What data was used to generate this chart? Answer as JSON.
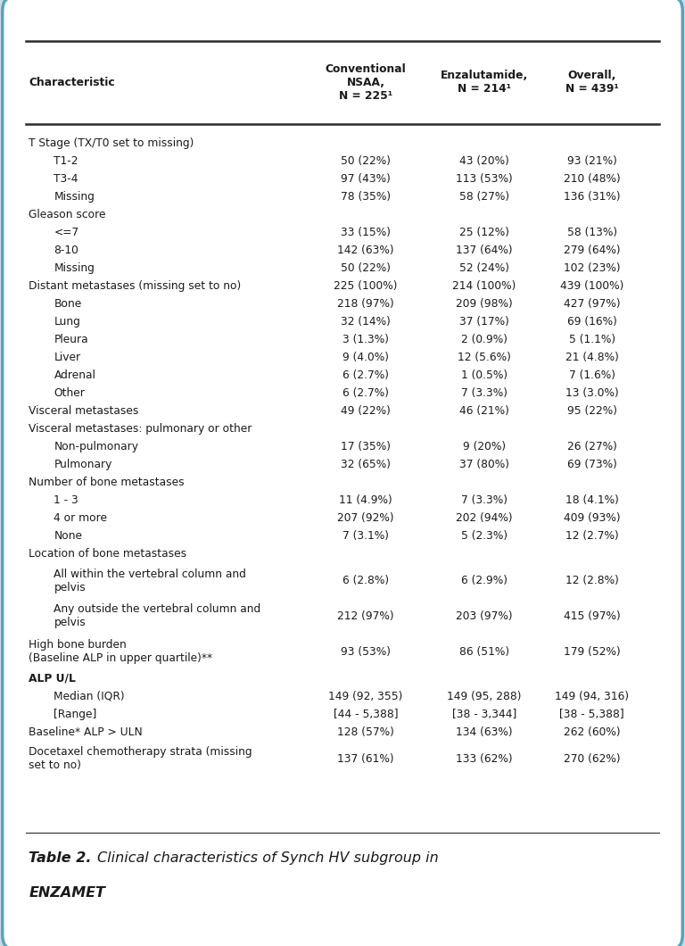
{
  "title_bold": "Table 2.",
  "title_italic": " Clinical characteristics of Synch HV subgroup in\nENZAMET",
  "col_headers": [
    "Characteristic",
    "Conventional\nNSAA,\nN = 225¹",
    "Enzalutamide,\nN = 214¹",
    "Overall,\nN = 439¹"
  ],
  "rows": [
    {
      "label": "T Stage (TX/T0 set to missing)",
      "indent": 0,
      "bold": false,
      "c1": "",
      "c2": "",
      "c3": ""
    },
    {
      "label": "T1-2",
      "indent": 1,
      "bold": false,
      "c1": "50 (22%)",
      "c2": "43 (20%)",
      "c3": "93 (21%)"
    },
    {
      "label": "T3-4",
      "indent": 1,
      "bold": false,
      "c1": "97 (43%)",
      "c2": "113 (53%)",
      "c3": "210 (48%)"
    },
    {
      "label": "Missing",
      "indent": 1,
      "bold": false,
      "c1": "78 (35%)",
      "c2": "58 (27%)",
      "c3": "136 (31%)"
    },
    {
      "label": "Gleason score",
      "indent": 0,
      "bold": false,
      "c1": "",
      "c2": "",
      "c3": ""
    },
    {
      "label": "<=7",
      "indent": 1,
      "bold": false,
      "c1": "33 (15%)",
      "c2": "25 (12%)",
      "c3": "58 (13%)"
    },
    {
      "label": "8-10",
      "indent": 1,
      "bold": false,
      "c1": "142 (63%)",
      "c2": "137 (64%)",
      "c3": "279 (64%)"
    },
    {
      "label": "Missing",
      "indent": 1,
      "bold": false,
      "c1": "50 (22%)",
      "c2": "52 (24%)",
      "c3": "102 (23%)"
    },
    {
      "label": "Distant metastases (missing set to no)",
      "indent": 0,
      "bold": false,
      "c1": "225 (100%)",
      "c2": "214 (100%)",
      "c3": "439 (100%)"
    },
    {
      "label": "Bone",
      "indent": 1,
      "bold": false,
      "c1": "218 (97%)",
      "c2": "209 (98%)",
      "c3": "427 (97%)"
    },
    {
      "label": "Lung",
      "indent": 1,
      "bold": false,
      "c1": "32 (14%)",
      "c2": "37 (17%)",
      "c3": "69 (16%)"
    },
    {
      "label": "Pleura",
      "indent": 1,
      "bold": false,
      "c1": "3 (1.3%)",
      "c2": "2 (0.9%)",
      "c3": "5 (1.1%)"
    },
    {
      "label": "Liver",
      "indent": 1,
      "bold": false,
      "c1": "9 (4.0%)",
      "c2": "12 (5.6%)",
      "c3": "21 (4.8%)"
    },
    {
      "label": "Adrenal",
      "indent": 1,
      "bold": false,
      "c1": "6 (2.7%)",
      "c2": "1 (0.5%)",
      "c3": "7 (1.6%)"
    },
    {
      "label": "Other",
      "indent": 1,
      "bold": false,
      "c1": "6 (2.7%)",
      "c2": "7 (3.3%)",
      "c3": "13 (3.0%)"
    },
    {
      "label": "Visceral metastases",
      "indent": 0,
      "bold": false,
      "c1": "49 (22%)",
      "c2": "46 (21%)",
      "c3": "95 (22%)"
    },
    {
      "label": "Visceral metastases: pulmonary or other",
      "indent": 0,
      "bold": false,
      "c1": "",
      "c2": "",
      "c3": ""
    },
    {
      "label": "Non-pulmonary",
      "indent": 1,
      "bold": false,
      "c1": "17 (35%)",
      "c2": "9 (20%)",
      "c3": "26 (27%)"
    },
    {
      "label": "Pulmonary",
      "indent": 1,
      "bold": false,
      "c1": "32 (65%)",
      "c2": "37 (80%)",
      "c3": "69 (73%)"
    },
    {
      "label": "Number of bone metastases",
      "indent": 0,
      "bold": false,
      "c1": "",
      "c2": "",
      "c3": ""
    },
    {
      "label": "1 - 3",
      "indent": 1,
      "bold": false,
      "c1": "11 (4.9%)",
      "c2": "7 (3.3%)",
      "c3": "18 (4.1%)"
    },
    {
      "label": "4 or more",
      "indent": 1,
      "bold": false,
      "c1": "207 (92%)",
      "c2": "202 (94%)",
      "c3": "409 (93%)"
    },
    {
      "label": "None",
      "indent": 1,
      "bold": false,
      "c1": "7 (3.1%)",
      "c2": "5 (2.3%)",
      "c3": "12 (2.7%)"
    },
    {
      "label": "Location of bone metastases",
      "indent": 0,
      "bold": false,
      "c1": "",
      "c2": "",
      "c3": ""
    },
    {
      "label": "All within the vertebral column and\npelvis",
      "indent": 1,
      "bold": false,
      "c1": "6 (2.8%)",
      "c2": "6 (2.9%)",
      "c3": "12 (2.8%)"
    },
    {
      "label": "Any outside the vertebral column and\npelvis",
      "indent": 1,
      "bold": false,
      "c1": "212 (97%)",
      "c2": "203 (97%)",
      "c3": "415 (97%)"
    },
    {
      "label": "High bone burden\n(Baseline ALP in upper quartile)**",
      "indent": 0,
      "bold": false,
      "c1": "93 (53%)",
      "c2": "86 (51%)",
      "c3": "179 (52%)"
    },
    {
      "label": "ALP U/L",
      "indent": 0,
      "bold": true,
      "c1": "",
      "c2": "",
      "c3": ""
    },
    {
      "label": "Median (IQR)",
      "indent": 1,
      "bold": false,
      "c1": "149 (92, 355)",
      "c2": "149 (95, 288)",
      "c3": "149 (94, 316)"
    },
    {
      "label": "[Range]",
      "indent": 1,
      "bold": false,
      "c1": "[44 - 5,388]",
      "c2": "[38 - 3,344]",
      "c3": "[38 - 5,388]"
    },
    {
      "label": "Baseline* ALP > ULN",
      "indent": 0,
      "bold": false,
      "c1": "128 (57%)",
      "c2": "134 (63%)",
      "c3": "262 (60%)"
    },
    {
      "label": "Docetaxel chemotherapy strata (missing\nset to no)",
      "indent": 0,
      "bold": false,
      "c1": "137 (61%)",
      "c2": "133 (62%)",
      "c3": "270 (62%)"
    }
  ],
  "bg_color": "#ffffff",
  "border_color": "#5ba3b8",
  "text_color": "#1a1a1a",
  "header_fontsize": 8.8,
  "body_fontsize": 8.8,
  "caption_fontsize": 11.5,
  "fig_bg": "#c8dce8"
}
